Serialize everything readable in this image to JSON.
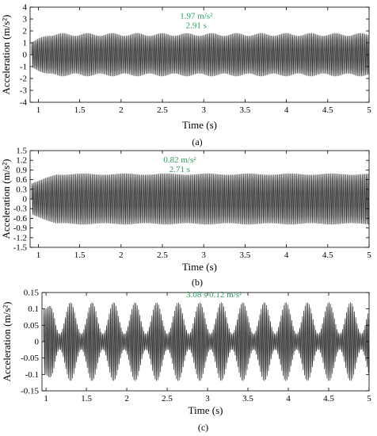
{
  "chart_data": [
    {
      "type": "line",
      "panel_label": "(a)",
      "xlabel": "Time (s)",
      "ylabel": "Acceleration (m/s²)",
      "xlim": [
        0.9,
        5
      ],
      "ylim": [
        -4,
        4
      ],
      "xticks": [
        1,
        1.5,
        2,
        2.5,
        3,
        3.5,
        4,
        4.5,
        5
      ],
      "yticks": [
        -4,
        -3,
        -2,
        -1,
        0,
        1,
        2,
        3,
        4
      ],
      "signal": {
        "envelope_start": 1.05,
        "envelope_mean": 1.7,
        "envelope_ripple": 0.12,
        "ripple_period": 0.3,
        "carrier_period": 0.0165,
        "rise_time": 0.2
      },
      "annotation": {
        "lines": [
          "1.97 m/s²",
          "2.91 s"
        ],
        "x": 2.91,
        "y": 3.05,
        "color": "#2e9e5b"
      },
      "line_color": "#333333"
    },
    {
      "type": "line",
      "panel_label": "(b)",
      "xlabel": "Time (s)",
      "ylabel": "Acceleration (m/s²)",
      "xlim": [
        0.9,
        5
      ],
      "ylim": [
        -1.5,
        1.5
      ],
      "xticks": [
        1,
        1.5,
        2,
        2.5,
        3,
        3.5,
        4,
        4.5,
        5
      ],
      "yticks": [
        -1.5,
        -1.2,
        -0.9,
        -0.6,
        -0.3,
        0,
        0.3,
        0.6,
        0.9,
        1.2,
        1.5
      ],
      "signal": {
        "envelope_start": 0.48,
        "envelope_mean": 0.77,
        "envelope_ripple": 0.02,
        "ripple_period": 0.5,
        "carrier_period": 0.0165,
        "rise_time": 0.3
      },
      "annotation": {
        "lines": [
          "0.82 m/s²",
          "2.71 s"
        ],
        "x": 2.71,
        "y": 1.13,
        "color": "#2e9e5b"
      },
      "line_color": "#333333"
    },
    {
      "type": "line",
      "panel_label": "(c)",
      "xlabel": "Time (s)",
      "ylabel": "Acceleration (m/s²)",
      "xlim": [
        0.95,
        5
      ],
      "ylim": [
        -0.15,
        0.15
      ],
      "xticks": [
        1,
        1.5,
        2,
        2.5,
        3,
        3.5,
        4,
        4.5,
        5
      ],
      "yticks": [
        -0.15,
        -0.1,
        -0.05,
        0,
        0.05,
        0.1,
        0.15
      ],
      "signal": {
        "envelope_start": 0.1,
        "envelope_mean": 0.072,
        "envelope_ripple": 0.048,
        "ripple_period": 0.2667,
        "carrier_period": 0.0165,
        "rise_time": 0.15
      },
      "annotation": {
        "lines": [
          "3.08 s 0.12 m/s²"
        ],
        "x": 3.08,
        "y": 0.135,
        "color": "#2e9e5b"
      },
      "line_color": "#333333"
    }
  ]
}
